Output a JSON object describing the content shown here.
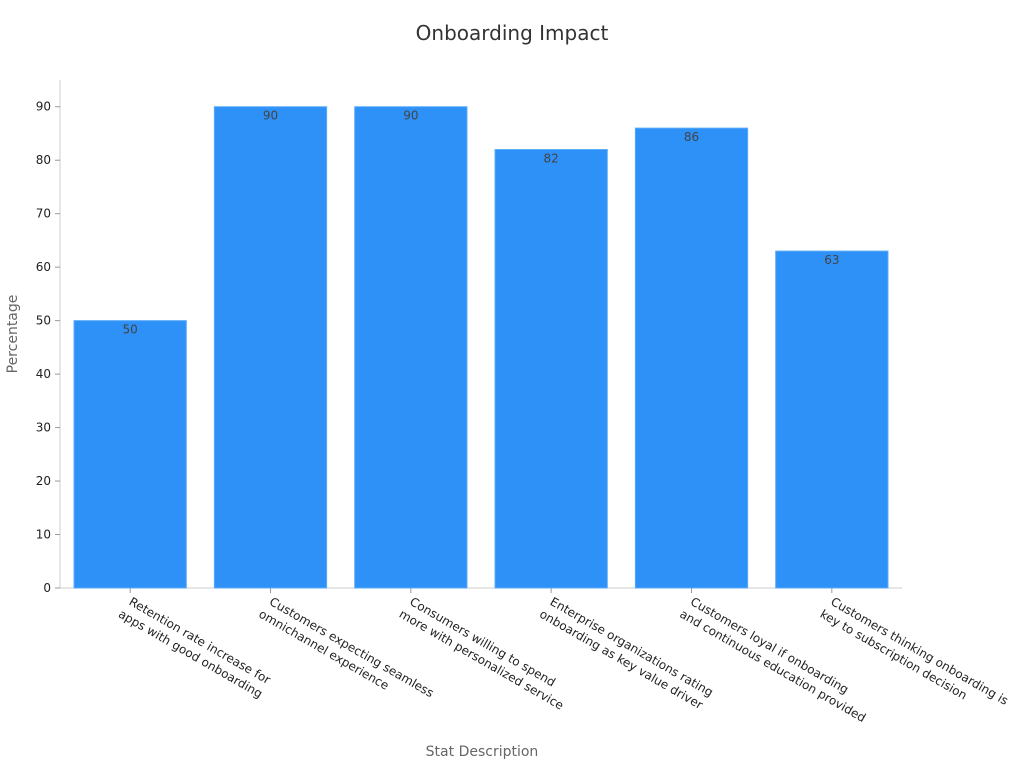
{
  "chart_data": {
    "type": "bar",
    "title": "Onboarding Impact",
    "xlabel": "Stat Description",
    "ylabel": "Percentage",
    "categories": [
      [
        "Retention rate increase for",
        "apps with good onboarding"
      ],
      [
        "Customers expecting seamless",
        "omnichannel experience"
      ],
      [
        "Consumers willing to spend",
        "more with personalized service"
      ],
      [
        "Enterprise organizations rating",
        "onboarding  as key value driver"
      ],
      [
        "Customers loyal if onboarding",
        "and continuous education provided"
      ],
      [
        "Customers thinking onboarding  is",
        "key to subscription decision"
      ]
    ],
    "values": [
      50,
      90,
      90,
      82,
      86,
      63
    ],
    "ylim": [
      0,
      95
    ],
    "yticks": [
      0,
      10,
      20,
      30,
      40,
      50,
      60,
      70,
      80,
      90
    ],
    "grid": false,
    "bar_color": "#2d91f7",
    "bar_edge_color": "#5aaaf8"
  }
}
